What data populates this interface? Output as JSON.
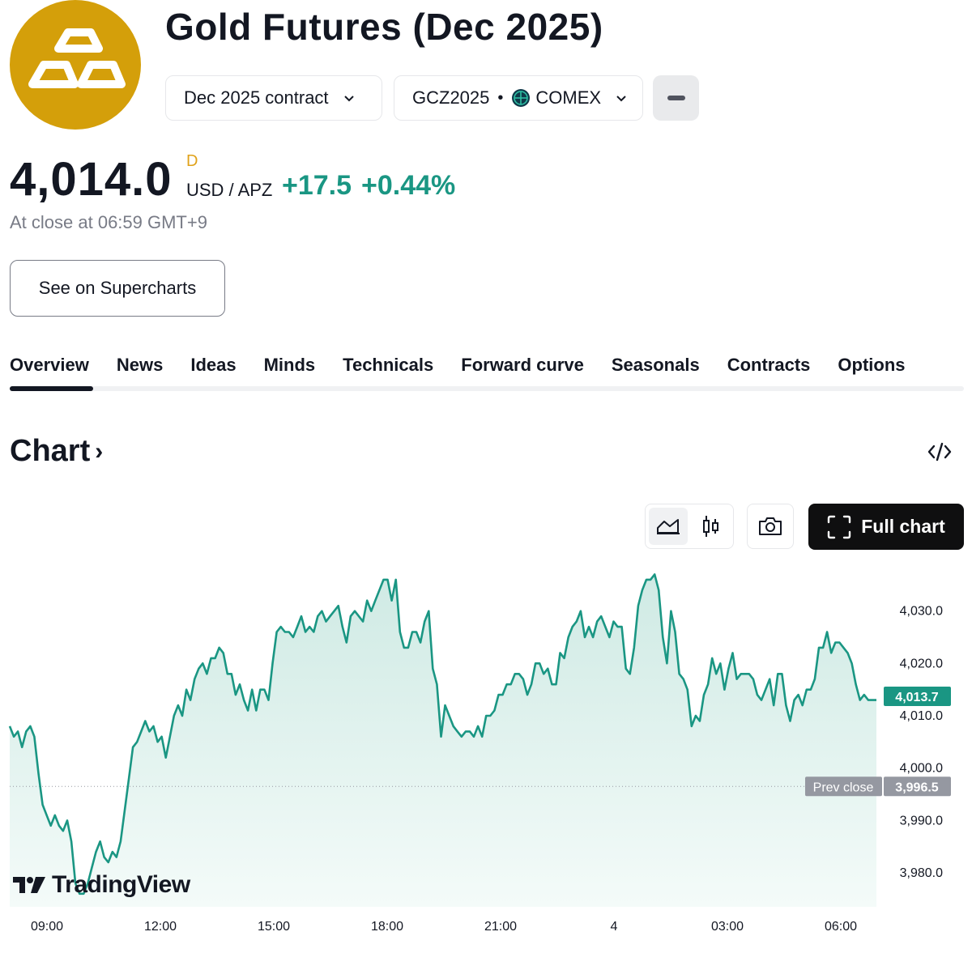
{
  "header": {
    "title": "Gold Futures (Dec 2025)",
    "contract_label": "Dec 2025 contract",
    "symbol": "GCZ2025",
    "exchange": "COMEX",
    "logo_icon": "gold-bars-icon",
    "colors": {
      "logo_bg": "#d49f0a"
    }
  },
  "quote": {
    "price": "4,014.0",
    "delay_mark": "D",
    "currency": "USD / APZ",
    "change_abs": "+17.5",
    "change_pct": "+0.44%",
    "close_note": "At close at 06:59 GMT+9",
    "colors": {
      "positive": "#1a9683"
    }
  },
  "actions": {
    "supercharts_label": "See on Supercharts",
    "full_chart_label": "Full chart"
  },
  "tabs": [
    {
      "label": "Overview",
      "active": true
    },
    {
      "label": "News"
    },
    {
      "label": "Ideas"
    },
    {
      "label": "Minds"
    },
    {
      "label": "Technicals"
    },
    {
      "label": "Forward curve"
    },
    {
      "label": "Seasonals"
    },
    {
      "label": "Contracts"
    },
    {
      "label": "Options"
    }
  ],
  "chart_section": {
    "heading": "Chart",
    "caret": "›"
  },
  "chart_data": {
    "type": "area",
    "x_ticks": [
      "09:00",
      "12:00",
      "15:00",
      "18:00",
      "21:00",
      "4",
      "03:00",
      "06:00"
    ],
    "y_ticks": [
      "4,030.0",
      "4,020.0",
      "4,010.0",
      "4,000.0",
      "3,990.0",
      "3,980.0"
    ],
    "y_tick_values": [
      4030,
      4020,
      4010,
      4000,
      3990,
      3980
    ],
    "ylim": [
      3973.5,
      4040.0
    ],
    "last_price": 4013.7,
    "last_price_label": "4,013.7",
    "prev_close": 3996.5,
    "prev_close_label": "3,996.5",
    "prev_close_tag": "Prev close",
    "series": [
      {
        "values": [
          4008,
          4006,
          4007,
          4004,
          4007,
          4008,
          4006,
          3999,
          3993,
          3991,
          3989,
          3991,
          3989,
          3988,
          3990,
          3986,
          3978,
          3976,
          3976,
          3978,
          3981,
          3984,
          3986,
          3983,
          3982,
          3984,
          3983,
          3986,
          3992,
          3998,
          4004,
          4005,
          4007,
          4009,
          4007,
          4008,
          4005,
          4006,
          4002,
          4006,
          4010,
          4012,
          4010,
          4015,
          4013,
          4017,
          4019,
          4020,
          4018,
          4021,
          4021,
          4023,
          4022,
          4018,
          4018,
          4014,
          4016,
          4013,
          4011,
          4015,
          4011,
          4015,
          4015,
          4013,
          4020,
          4026,
          4027,
          4026,
          4026,
          4025,
          4027,
          4029,
          4026,
          4027,
          4026,
          4029,
          4030,
          4028,
          4029,
          4030,
          4031,
          4027,
          4024,
          4029,
          4030,
          4029,
          4028,
          4032,
          4030,
          4032,
          4034,
          4036,
          4036,
          4032,
          4036,
          4026,
          4023,
          4023,
          4026,
          4026,
          4024,
          4028,
          4030,
          4019,
          4016,
          4006,
          4012,
          4010,
          4008,
          4007,
          4006,
          4007,
          4007,
          4006,
          4008,
          4006,
          4010,
          4010,
          4011,
          4014,
          4014,
          4016,
          4016,
          4018,
          4018,
          4017,
          4014,
          4016,
          4020,
          4020,
          4018,
          4019,
          4016,
          4016,
          4022,
          4021,
          4025,
          4027,
          4028,
          4030,
          4025,
          4027,
          4025,
          4028,
          4029,
          4027,
          4025,
          4028,
          4027,
          4027,
          4019,
          4018,
          4023,
          4031,
          4034,
          4036,
          4036,
          4037,
          4034,
          4025,
          4020,
          4030,
          4026,
          4018,
          4017,
          4015,
          4008,
          4010,
          4009,
          4014,
          4016,
          4021,
          4018,
          4020,
          4015,
          4019,
          4022,
          4017,
          4018,
          4018,
          4018,
          4017,
          4014,
          4013,
          4015,
          4017,
          4012,
          4018,
          4018,
          4012,
          4009,
          4013,
          4014,
          4012,
          4015,
          4015,
          4017,
          4023,
          4023,
          4026,
          4022,
          4024,
          4024,
          4023,
          4022,
          4020,
          4016,
          4013,
          4014,
          4013,
          4013,
          4013
        ]
      }
    ],
    "grid": false,
    "colors": {
      "line": "#1a9683",
      "fill_top": "#cfeae4",
      "fill_bottom": "#f4fbf9",
      "prev_close": "#9598a1"
    },
    "watermark": "TradingView"
  }
}
